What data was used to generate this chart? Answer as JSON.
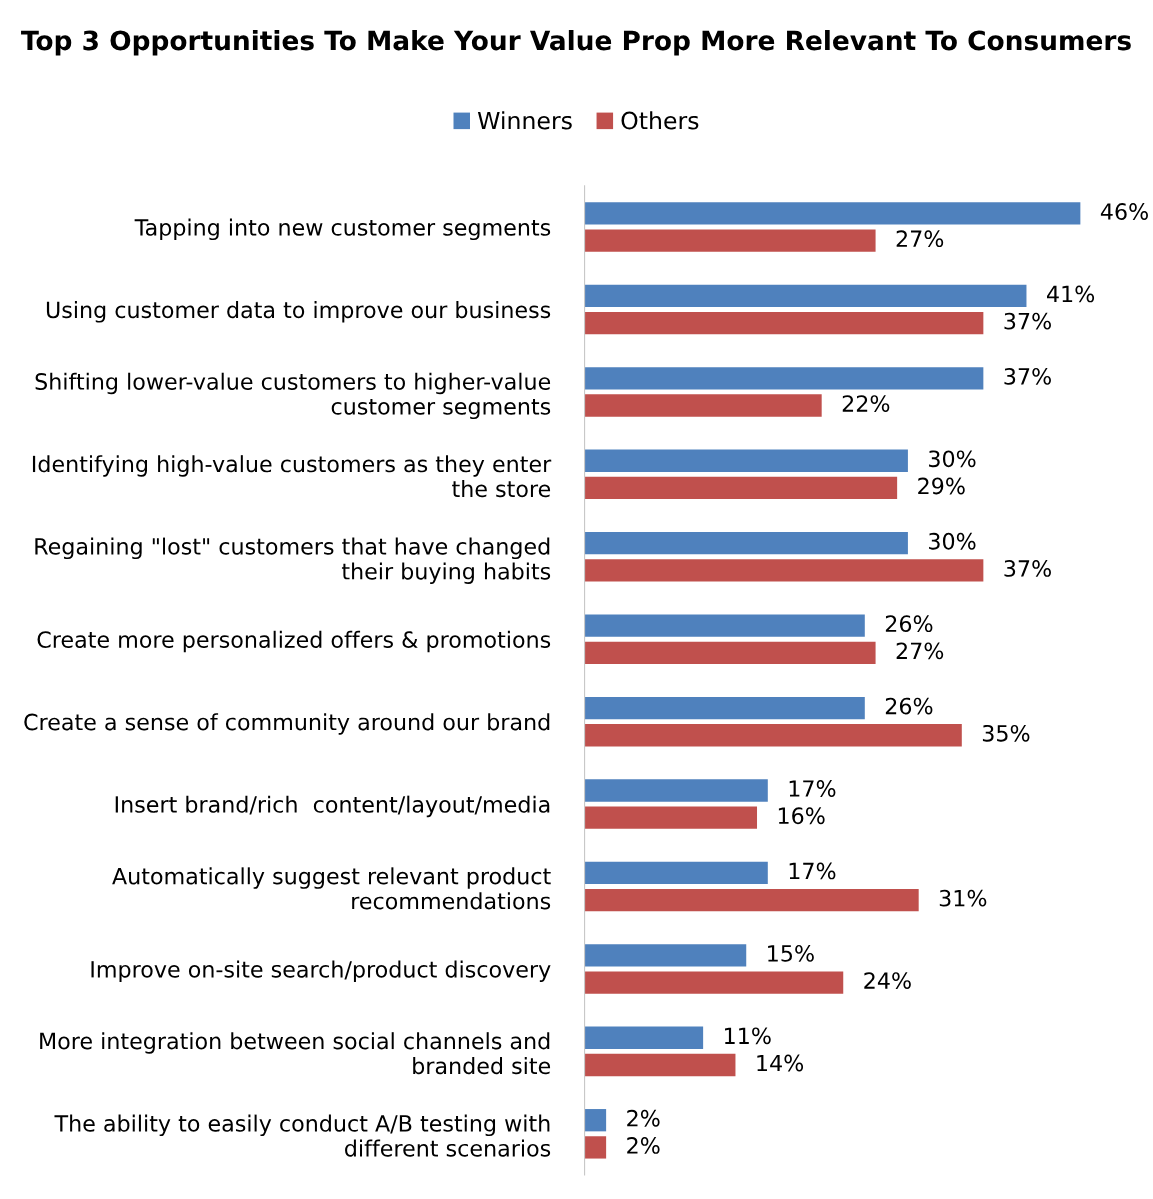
{
  "chart_data": {
    "type": "bar",
    "orientation": "horizontal",
    "title": "Top 3 Opportunities To Make Your Value Prop More Relevant To Consumers",
    "categories": [
      "Tapping into new customer segments",
      "Using customer data to improve our business",
      "Shifting lower-value customers to higher-value customer segments",
      "Identifying high-value customers as they enter the store",
      "Regaining \"lost\" customers that have changed their buying habits",
      "Create more personalized offers & promotions",
      "Create a sense of community around our brand",
      "Insert brand/rich  content/layout/media",
      "Automatically suggest relevant product recommendations",
      "Improve on-site search/product discovery",
      "More integration between social channels and branded site",
      "The ability to easily conduct A/B testing with different scenarios"
    ],
    "series": [
      {
        "name": "Winners",
        "color": "#4f81bd",
        "values": [
          46,
          41,
          37,
          30,
          30,
          26,
          26,
          17,
          17,
          15,
          11,
          2
        ],
        "value_labels": [
          "46%",
          "41%",
          "37%",
          "30%",
          "30%",
          "26%",
          "26%",
          "17%",
          "17%",
          "15%",
          "11%",
          "2%"
        ]
      },
      {
        "name": "Others",
        "color": "#c0504d",
        "values": [
          27,
          37,
          22,
          29,
          37,
          27,
          35,
          16,
          31,
          24,
          14,
          2
        ],
        "value_labels": [
          "27%",
          "37%",
          "22%",
          "29%",
          "37%",
          "27%",
          "35%",
          "16%",
          "31%",
          "24%",
          "14%",
          "2%"
        ]
      }
    ],
    "legend": "top",
    "grid": false
  }
}
